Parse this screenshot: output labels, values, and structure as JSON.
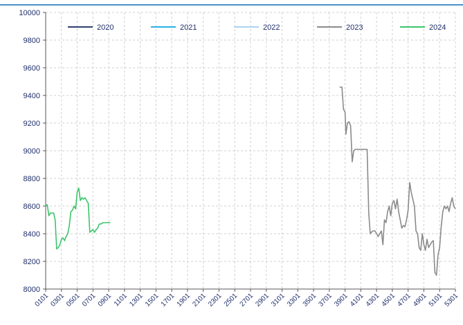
{
  "chart_data": {
    "type": "line",
    "title": "",
    "xlabel": "",
    "ylabel": "",
    "ylim": [
      8000,
      10000
    ],
    "y_ticks": [
      "8000",
      "8200",
      "8400",
      "8600",
      "8800",
      "9000",
      "9200",
      "9400",
      "9600",
      "9800",
      "10000"
    ],
    "x_ticks": [
      "0101",
      "0301",
      "0501",
      "0701",
      "0901",
      "1101",
      "1301",
      "1501",
      "1701",
      "1901",
      "2101",
      "2301",
      "2501",
      "2701",
      "2901",
      "3101",
      "3301",
      "3501",
      "3701",
      "3901",
      "4101",
      "4301",
      "4501",
      "4701",
      "4901",
      "5101",
      "5301"
    ],
    "x_range": [
      1,
      53
    ],
    "grid": true,
    "legend_position": "top",
    "series": [
      {
        "name": "2020",
        "color": "#2e3f6e",
        "x": [],
        "values": []
      },
      {
        "name": "2021",
        "color": "#2ab0e8",
        "x": [],
        "values": []
      },
      {
        "name": "2022",
        "color": "#a9d3f0",
        "x": [],
        "values": []
      },
      {
        "name": "2023",
        "color": "#8a8a8a",
        "x": [
          38.3,
          38.6,
          38.8,
          39.0,
          39.1,
          39.3,
          39.5,
          39.7,
          39.9,
          40.1,
          40.3,
          40.6,
          41.0,
          41.5,
          41.8,
          42.0,
          42.2,
          42.5,
          42.8,
          43.0,
          43.2,
          43.4,
          43.6,
          43.8,
          44.0,
          44.2,
          44.4,
          44.6,
          44.8,
          45.0,
          45.2,
          45.4,
          45.6,
          45.8,
          46.0,
          46.2,
          46.4,
          46.6,
          46.8,
          47.0,
          47.2,
          47.4,
          47.6,
          47.8,
          48.0,
          48.2,
          48.4,
          48.6,
          48.8,
          49.0,
          49.2,
          49.4,
          49.6,
          49.8,
          50.0,
          50.2,
          50.4,
          50.6,
          50.8,
          51.0,
          51.2,
          51.4,
          51.6,
          51.8,
          52.0,
          52.2,
          52.4,
          52.6,
          52.8,
          53.0
        ],
        "values": [
          9460,
          9460,
          9300,
          9280,
          9120,
          9200,
          9210,
          9180,
          8920,
          9000,
          9010,
          9010,
          9010,
          9010,
          9010,
          8550,
          8400,
          8420,
          8420,
          8400,
          8380,
          8400,
          8420,
          8320,
          8500,
          8480,
          8560,
          8600,
          8530,
          8620,
          8640,
          8580,
          8650,
          8560,
          8500,
          8440,
          8460,
          8450,
          8500,
          8570,
          8770,
          8700,
          8650,
          8600,
          8420,
          8400,
          8300,
          8280,
          8400,
          8320,
          8280,
          8360,
          8300,
          8320,
          8340,
          8350,
          8120,
          8100,
          8250,
          8300,
          8450,
          8560,
          8600,
          8580,
          8600,
          8560,
          8620,
          8660,
          8600,
          8580
        ]
      },
      {
        "name": "2024",
        "color": "#3cc46a",
        "x": [
          1.0,
          1.2,
          1.4,
          1.6,
          1.8,
          2.0,
          2.2,
          2.4,
          2.6,
          2.8,
          3.0,
          3.2,
          3.4,
          3.6,
          3.8,
          4.0,
          4.2,
          4.4,
          4.6,
          4.8,
          5.0,
          5.2,
          5.4,
          5.6,
          5.8,
          6.0,
          6.2,
          6.4,
          6.6,
          6.8,
          7.0,
          7.2,
          7.4,
          7.6,
          7.8,
          8.0,
          8.3,
          8.6,
          8.9,
          9.2
        ],
        "values": [
          8600,
          8610,
          8530,
          8550,
          8550,
          8550,
          8500,
          8290,
          8300,
          8320,
          8360,
          8370,
          8350,
          8380,
          8400,
          8460,
          8560,
          8570,
          8600,
          8580,
          8700,
          8730,
          8640,
          8660,
          8650,
          8660,
          8640,
          8620,
          8410,
          8420,
          8430,
          8410,
          8430,
          8440,
          8470,
          8470,
          8480,
          8480,
          8480,
          8480
        ]
      }
    ]
  }
}
